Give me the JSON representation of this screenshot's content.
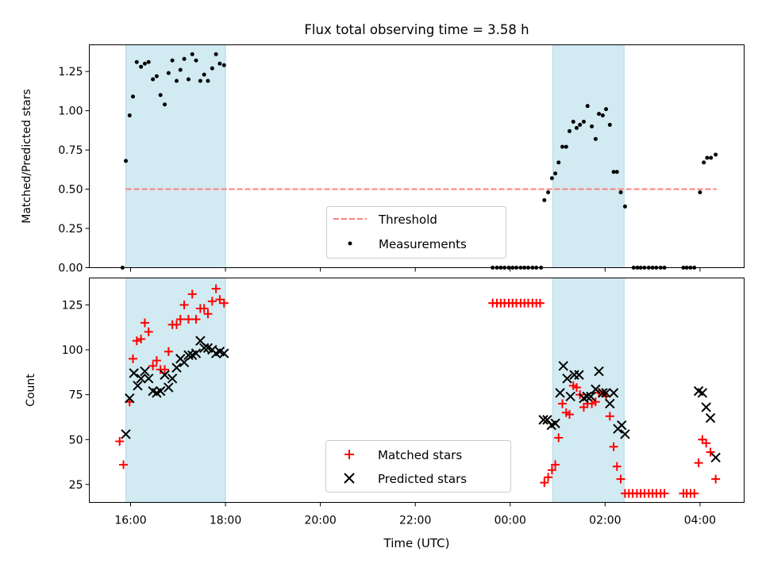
{
  "chart_data": {
    "type": "scatter",
    "title": "Flux total observing time = 3.58 h",
    "xlabel": "Time (UTC)",
    "x_unit": "hours",
    "x_ticks": [
      {
        "value": 16,
        "label": "16:00"
      },
      {
        "value": 18,
        "label": "18:00"
      },
      {
        "value": 20,
        "label": "20:00"
      },
      {
        "value": 22,
        "label": "22:00"
      },
      {
        "value": 24,
        "label": "00:00"
      },
      {
        "value": 26,
        "label": "02:00"
      },
      {
        "value": 28,
        "label": "04:00"
      }
    ],
    "xlim": [
      15.13,
      28.93
    ],
    "shaded_intervals": [
      [
        15.9,
        18.0
      ],
      [
        24.9,
        26.4
      ]
    ],
    "colors": {
      "shade": "#add8e6",
      "threshold": "#ff7f7f",
      "matched": "#ff0000",
      "predicted": "#000000",
      "measurement": "#000000"
    },
    "panels": [
      {
        "ylabel": "Matched/Predicted stars",
        "ylim": [
          0,
          1.42
        ],
        "y_ticks": [
          "0.00",
          "0.25",
          "0.50",
          "0.75",
          "1.00",
          "1.25"
        ],
        "legend_position": "lower-center",
        "legend": [
          {
            "label": "Threshold",
            "marker": "dashed-line"
          },
          {
            "label": "Measurements",
            "marker": "dot"
          }
        ],
        "threshold": {
          "value": 0.5,
          "x_range": [
            15.9,
            28.35
          ]
        },
        "series": [
          {
            "name": "Measurements",
            "points": [
              [
                15.83,
                0.0
              ],
              [
                15.9,
                0.68
              ],
              [
                15.98,
                0.97
              ],
              [
                16.05,
                1.09
              ],
              [
                16.13,
                1.31
              ],
              [
                16.22,
                1.28
              ],
              [
                16.3,
                1.3
              ],
              [
                16.38,
                1.31
              ],
              [
                16.47,
                1.2
              ],
              [
                16.55,
                1.22
              ],
              [
                16.63,
                1.1
              ],
              [
                16.72,
                1.04
              ],
              [
                16.8,
                1.24
              ],
              [
                16.88,
                1.32
              ],
              [
                16.97,
                1.19
              ],
              [
                17.05,
                1.26
              ],
              [
                17.13,
                1.33
              ],
              [
                17.22,
                1.2
              ],
              [
                17.3,
                1.36
              ],
              [
                17.38,
                1.32
              ],
              [
                17.47,
                1.19
              ],
              [
                17.55,
                1.23
              ],
              [
                17.63,
                1.19
              ],
              [
                17.72,
                1.27
              ],
              [
                17.8,
                1.36
              ],
              [
                17.88,
                1.3
              ],
              [
                17.97,
                1.29
              ],
              [
                23.63,
                0.0
              ],
              [
                23.72,
                0.0
              ],
              [
                23.8,
                0.0
              ],
              [
                23.88,
                0.0
              ],
              [
                23.97,
                0.0
              ],
              [
                24.05,
                0.0
              ],
              [
                24.13,
                0.0
              ],
              [
                24.22,
                0.0
              ],
              [
                24.3,
                0.0
              ],
              [
                24.38,
                0.0
              ],
              [
                24.47,
                0.0
              ],
              [
                24.55,
                0.0
              ],
              [
                24.65,
                0.0
              ],
              [
                24.72,
                0.43
              ],
              [
                24.8,
                0.48
              ],
              [
                24.88,
                0.57
              ],
              [
                24.95,
                0.6
              ],
              [
                25.02,
                0.67
              ],
              [
                25.1,
                0.77
              ],
              [
                25.18,
                0.77
              ],
              [
                25.25,
                0.87
              ],
              [
                25.33,
                0.93
              ],
              [
                25.4,
                0.89
              ],
              [
                25.47,
                0.91
              ],
              [
                25.55,
                0.93
              ],
              [
                25.63,
                1.03
              ],
              [
                25.72,
                0.9
              ],
              [
                25.8,
                0.82
              ],
              [
                25.87,
                0.98
              ],
              [
                25.95,
                0.97
              ],
              [
                26.02,
                1.01
              ],
              [
                26.1,
                0.91
              ],
              [
                26.18,
                0.61
              ],
              [
                26.25,
                0.61
              ],
              [
                26.33,
                0.48
              ],
              [
                26.42,
                0.39
              ],
              [
                26.6,
                0.0
              ],
              [
                26.68,
                0.0
              ],
              [
                26.75,
                0.0
              ],
              [
                26.83,
                0.0
              ],
              [
                26.92,
                0.0
              ],
              [
                27.0,
                0.0
              ],
              [
                27.08,
                0.0
              ],
              [
                27.17,
                0.0
              ],
              [
                27.25,
                0.0
              ],
              [
                27.65,
                0.0
              ],
              [
                27.72,
                0.0
              ],
              [
                27.8,
                0.0
              ],
              [
                27.88,
                0.0
              ],
              [
                28.0,
                0.48
              ],
              [
                28.08,
                0.67
              ],
              [
                28.15,
                0.7
              ],
              [
                28.23,
                0.7
              ],
              [
                28.33,
                0.72
              ]
            ]
          }
        ]
      },
      {
        "ylabel": "Count",
        "ylim": [
          15,
          140
        ],
        "y_ticks": [
          "25",
          "50",
          "75",
          "100",
          "125"
        ],
        "legend_position": "lower-center",
        "legend": [
          {
            "label": "Matched stars",
            "marker": "plus"
          },
          {
            "label": "Predicted stars",
            "marker": "x"
          }
        ],
        "series": [
          {
            "name": "Matched stars",
            "points": [
              [
                15.77,
                49
              ],
              [
                15.85,
                36
              ],
              [
                15.98,
                71
              ],
              [
                16.05,
                95
              ],
              [
                16.13,
                105
              ],
              [
                16.22,
                106
              ],
              [
                16.3,
                115
              ],
              [
                16.38,
                110
              ],
              [
                16.47,
                91
              ],
              [
                16.55,
                94
              ],
              [
                16.63,
                89
              ],
              [
                16.72,
                89
              ],
              [
                16.8,
                99
              ],
              [
                16.88,
                114
              ],
              [
                16.97,
                114
              ],
              [
                17.05,
                117
              ],
              [
                17.13,
                125
              ],
              [
                17.22,
                117
              ],
              [
                17.3,
                131
              ],
              [
                17.38,
                117
              ],
              [
                17.47,
                123
              ],
              [
                17.55,
                123
              ],
              [
                17.63,
                120
              ],
              [
                17.72,
                127
              ],
              [
                17.8,
                134
              ],
              [
                17.88,
                128
              ],
              [
                17.97,
                126
              ],
              [
                23.63,
                126
              ],
              [
                23.72,
                126
              ],
              [
                23.8,
                126
              ],
              [
                23.88,
                126
              ],
              [
                23.97,
                126
              ],
              [
                24.05,
                126
              ],
              [
                24.13,
                126
              ],
              [
                24.22,
                126
              ],
              [
                24.3,
                126
              ],
              [
                24.38,
                126
              ],
              [
                24.47,
                126
              ],
              [
                24.55,
                126
              ],
              [
                24.63,
                126
              ],
              [
                24.72,
                26
              ],
              [
                24.8,
                29
              ],
              [
                24.88,
                33
              ],
              [
                24.95,
                36
              ],
              [
                25.02,
                51
              ],
              [
                25.1,
                70
              ],
              [
                25.18,
                65
              ],
              [
                25.25,
                64
              ],
              [
                25.33,
                80
              ],
              [
                25.4,
                79
              ],
              [
                25.47,
                75
              ],
              [
                25.55,
                68
              ],
              [
                25.63,
                70
              ],
              [
                25.72,
                70
              ],
              [
                25.8,
                71
              ],
              [
                25.87,
                76
              ],
              [
                25.95,
                76
              ],
              [
                26.02,
                74
              ],
              [
                26.1,
                63
              ],
              [
                26.18,
                46
              ],
              [
                26.25,
                35
              ],
              [
                26.33,
                28
              ],
              [
                26.42,
                20
              ],
              [
                26.5,
                20
              ],
              [
                26.58,
                20
              ],
              [
                26.67,
                20
              ],
              [
                26.75,
                20
              ],
              [
                26.83,
                20
              ],
              [
                26.92,
                20
              ],
              [
                27.0,
                20
              ],
              [
                27.08,
                20
              ],
              [
                27.17,
                20
              ],
              [
                27.25,
                20
              ],
              [
                27.65,
                20
              ],
              [
                27.72,
                20
              ],
              [
                27.8,
                20
              ],
              [
                27.88,
                20
              ],
              [
                27.97,
                37
              ],
              [
                28.05,
                50
              ],
              [
                28.13,
                48
              ],
              [
                28.22,
                43
              ],
              [
                28.33,
                28
              ]
            ]
          },
          {
            "name": "Predicted stars",
            "points": [
              [
                15.9,
                53
              ],
              [
                15.98,
                73
              ],
              [
                16.07,
                87
              ],
              [
                16.15,
                80
              ],
              [
                16.22,
                84
              ],
              [
                16.3,
                88
              ],
              [
                16.38,
                84
              ],
              [
                16.47,
                77
              ],
              [
                16.55,
                76
              ],
              [
                16.63,
                77
              ],
              [
                16.72,
                86
              ],
              [
                16.8,
                79
              ],
              [
                16.88,
                84
              ],
              [
                16.97,
                90
              ],
              [
                17.05,
                95
              ],
              [
                17.13,
                93
              ],
              [
                17.22,
                97
              ],
              [
                17.3,
                97
              ],
              [
                17.38,
                98
              ],
              [
                17.47,
                105
              ],
              [
                17.55,
                101
              ],
              [
                17.63,
                101
              ],
              [
                17.72,
                100
              ],
              [
                17.8,
                98
              ],
              [
                17.88,
                99
              ],
              [
                17.97,
                98
              ],
              [
                24.7,
                61
              ],
              [
                24.78,
                61
              ],
              [
                24.87,
                58
              ],
              [
                24.95,
                59
              ],
              [
                25.05,
                76
              ],
              [
                25.12,
                91
              ],
              [
                25.2,
                84
              ],
              [
                25.27,
                74
              ],
              [
                25.35,
                86
              ],
              [
                25.45,
                86
              ],
              [
                25.55,
                73
              ],
              [
                25.62,
                74
              ],
              [
                25.7,
                74
              ],
              [
                25.8,
                78
              ],
              [
                25.87,
                88
              ],
              [
                25.95,
                76
              ],
              [
                26.02,
                76
              ],
              [
                26.1,
                70
              ],
              [
                26.18,
                76
              ],
              [
                26.27,
                56
              ],
              [
                26.35,
                58
              ],
              [
                26.42,
                53
              ],
              [
                27.97,
                77
              ],
              [
                28.05,
                76
              ],
              [
                28.13,
                68
              ],
              [
                28.22,
                62
              ],
              [
                28.33,
                40
              ]
            ]
          }
        ]
      }
    ]
  }
}
